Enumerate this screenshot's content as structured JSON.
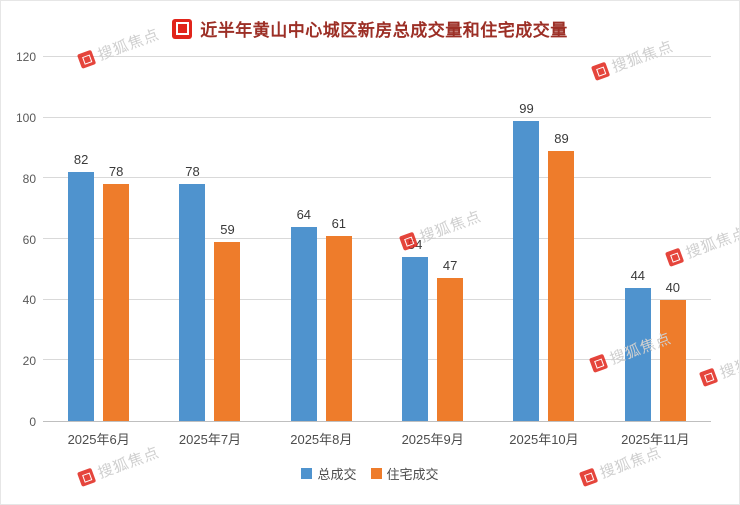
{
  "header": {
    "title": "近半年黄山中心城区新房总成交量和住宅成交量"
  },
  "chart_data": {
    "type": "bar",
    "title": "近半年黄山中心城区新房总成交量和住宅成交量",
    "categories": [
      "2025年6月",
      "2025年7月",
      "2025年8月",
      "2025年9月",
      "2025年10月",
      "2025年11月"
    ],
    "series": [
      {
        "key": "total",
        "name": "总成交",
        "color": "#4f93ce",
        "values": [
          82,
          78,
          64,
          54,
          99,
          44
        ]
      },
      {
        "key": "residential",
        "name": "住宅成交",
        "color": "#ee7c2b",
        "values": [
          78,
          59,
          61,
          47,
          89,
          40
        ]
      }
    ],
    "xlabel": "",
    "ylabel": "",
    "ylim": [
      0,
      120
    ],
    "ytick_step": 20,
    "yticks": [
      0,
      20,
      40,
      60,
      80,
      100,
      120
    ],
    "grid": true,
    "legend_position": "bottom"
  },
  "watermark": {
    "text": "搜狐焦点",
    "logo_color": "#e1251b"
  },
  "colors": {
    "title": "#9c2f26",
    "axis_text": "#595959",
    "gridline": "#d9d9d9",
    "bar_blue": "#4f93ce",
    "bar_orange": "#ee7c2b"
  }
}
